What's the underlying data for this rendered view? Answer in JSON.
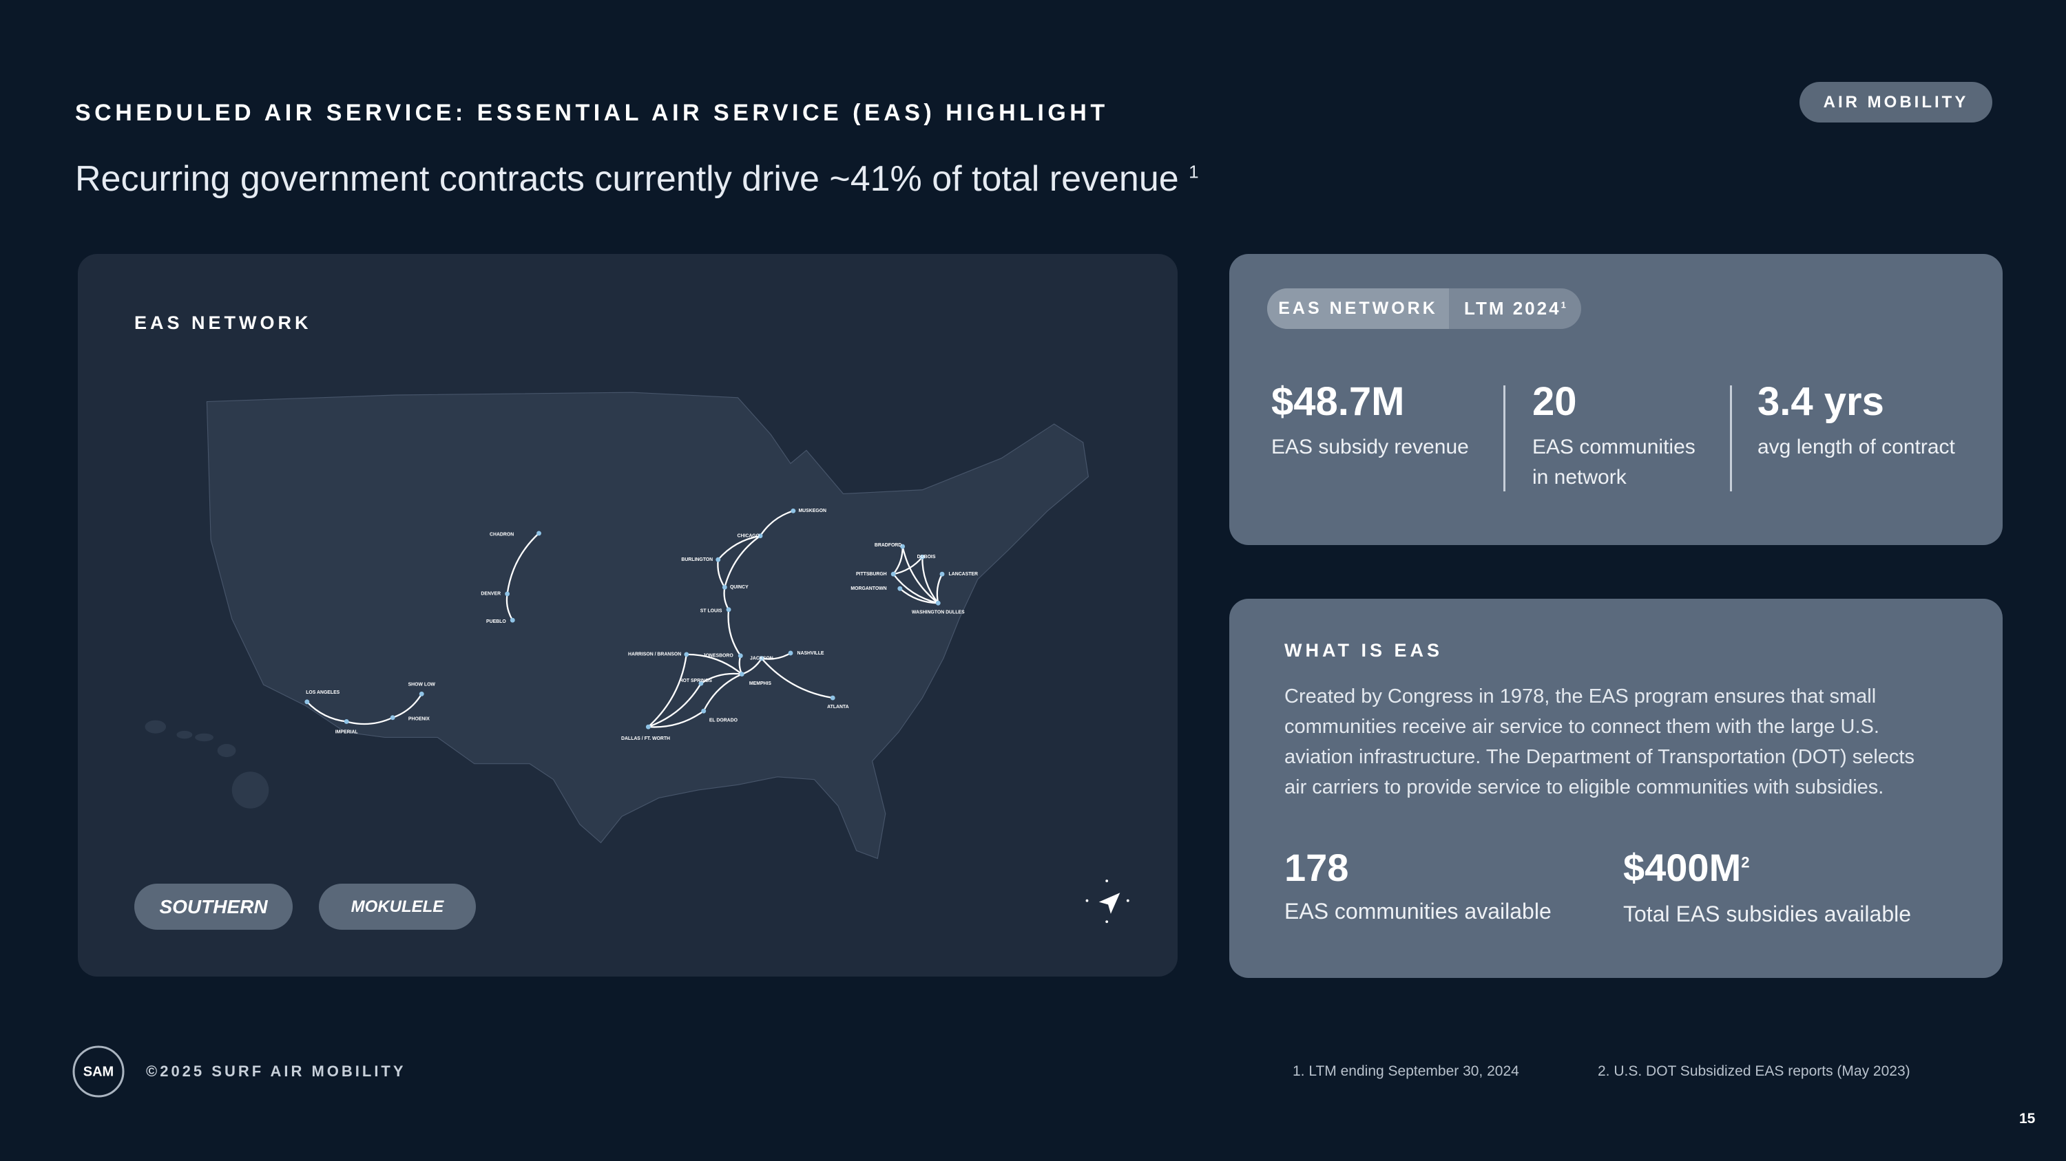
{
  "header": {
    "title": "SCHEDULED AIR SERVICE: ESSENTIAL AIR SERVICE (EAS) HIGHLIGHT",
    "subtitle": "Recurring government contracts currently drive ~41% of total revenue",
    "subtitle_note": "1",
    "badge": "AIR MOBILITY"
  },
  "map": {
    "title": "EAS NETWORK",
    "cities": [
      "CHADRON",
      "DENVER",
      "PUEBLO",
      "MUSKEGON",
      "CHICAGO",
      "BURLINGTON",
      "QUINCY",
      "ST LOUIS",
      "HARRISON / BRANSON",
      "JONESBORO",
      "JACKSON",
      "NASHVILLE",
      "HOT SPRINGS",
      "MEMPHIS",
      "EL DORADO",
      "DALLAS / FT. WORTH",
      "ATLANTA",
      "LOS ANGELES",
      "SHOW LOW",
      "PHOENIX",
      "IMPERIAL",
      "BRADFORD",
      "DUBOIS",
      "PITTSBURGH",
      "MORGANTOWN",
      "LANCASTER",
      "WASHINGTON DULLES"
    ],
    "logos": [
      "SOUTHERN",
      "MOKULELE"
    ]
  },
  "stats_card": {
    "tabs": [
      "EAS NETWORK",
      "LTM 2024"
    ],
    "tab_note": "1",
    "stats": [
      {
        "value": "$48.7M",
        "label_lines": [
          "EAS subsidy revenue"
        ]
      },
      {
        "value": "20",
        "label_lines": [
          "EAS communities",
          "in network"
        ]
      },
      {
        "value": "3.4 yrs",
        "label_lines": [
          "avg length of contract"
        ]
      }
    ]
  },
  "eas_card": {
    "title": "WHAT IS EAS",
    "body_lines": [
      "Created by Congress in 1978, the EAS program ensures that small",
      "communities receive air service to connect them with the large U.S.",
      "aviation infrastructure. The Department of Transportation (DOT) selects",
      "air carriers to provide service to eligible communities with subsidies."
    ],
    "stats": [
      {
        "value": "178",
        "label": "EAS communities available"
      },
      {
        "value": "$400M",
        "note": "2",
        "label": "Total EAS subsidies available"
      }
    ]
  },
  "footer": {
    "logo": "SAM",
    "copyright": "©2025 SURF AIR MOBILITY",
    "notes": [
      "1. LTM ending September 30, 2024",
      "2. U.S. DOT Subsidized EAS reports (May 2023)"
    ],
    "page": "15"
  }
}
